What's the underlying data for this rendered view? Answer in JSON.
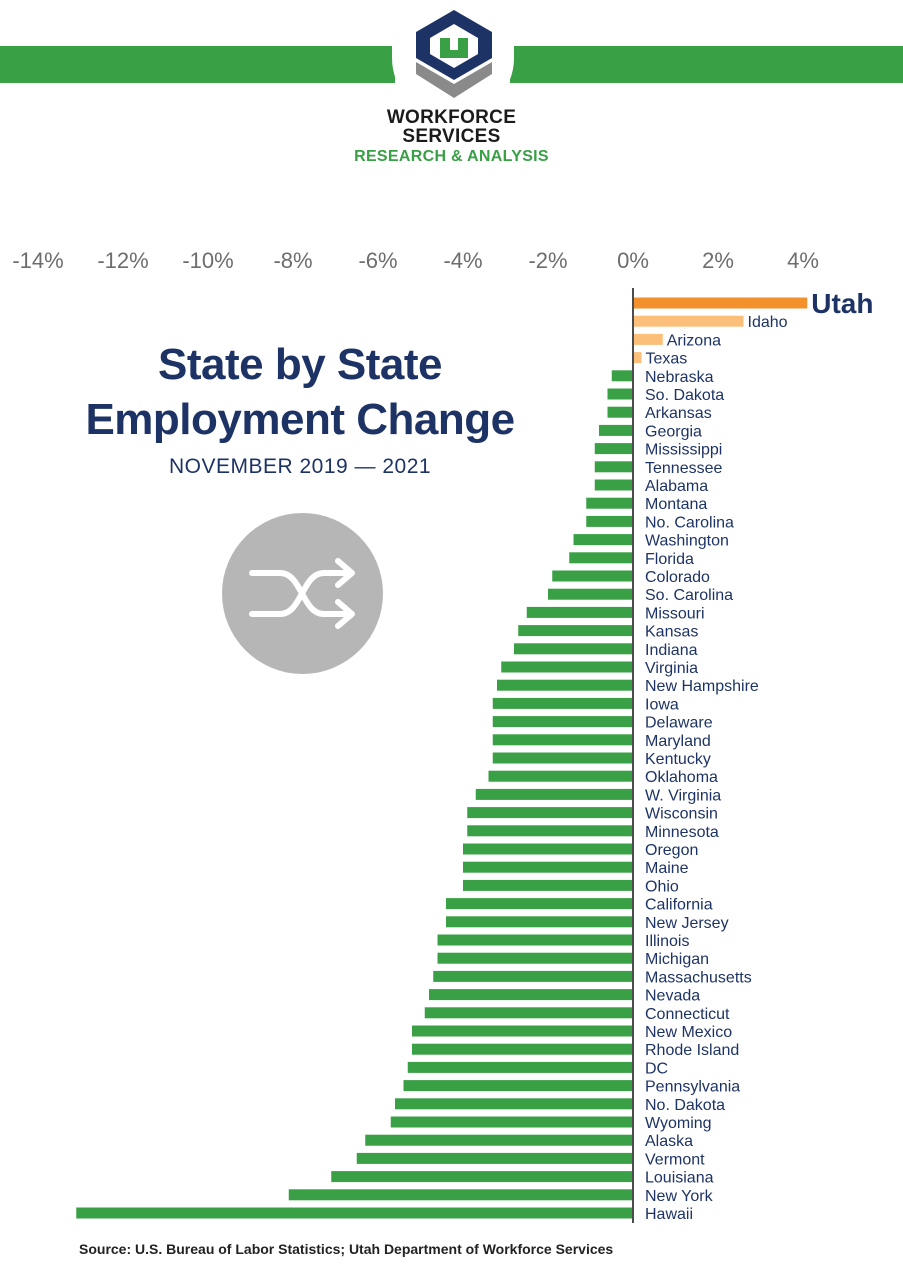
{
  "header": {
    "org_line1": "WORKFORCE",
    "org_line2": "SERVICES",
    "org_line3": "RESEARCH & ANALYSIS",
    "logo_icon": "workforce-services-logo-icon",
    "band_color": "#39a045"
  },
  "chart_data": {
    "type": "bar",
    "orientation": "horizontal",
    "title_line1": "State by State",
    "title_line2": "Employment Change",
    "subtitle": "NOVEMBER 2019 — 2021",
    "decor_icon": "shuffle-icon",
    "x_ticks": [
      "-14%",
      "-12%",
      "-10%",
      "-8%",
      "-6%",
      "-4%",
      "-2%",
      "0%",
      "2%",
      "4%"
    ],
    "xlim": [
      -14.5,
      4.5
    ],
    "grid": false,
    "colors": {
      "highlight": "#f3922c",
      "positive": "#fbbf7a",
      "negative": "#39a045",
      "label": "#1e3365"
    },
    "categories": [
      "Utah",
      "Idaho",
      "Arizona",
      "Texas",
      "Nebraska",
      "So. Dakota",
      "Arkansas",
      "Georgia",
      "Mississippi",
      "Tennessee",
      "Alabama",
      "Montana",
      "No. Carolina",
      "Washington",
      "Florida",
      "Colorado",
      "So. Carolina",
      "Missouri",
      "Kansas",
      "Indiana",
      "Virginia",
      "New Hampshire",
      "Iowa",
      "Delaware",
      "Maryland",
      "Kentucky",
      "Oklahoma",
      "W. Virginia",
      "Wisconsin",
      "Minnesota",
      "Oregon",
      "Maine",
      "Ohio",
      "California",
      "New Jersey",
      "Illinois",
      "Michigan",
      "Massachusetts",
      "Nevada",
      "Connecticut",
      "New Mexico",
      "Rhode Island",
      "DC",
      "Pennsylvania",
      "No. Dakota",
      "Wyoming",
      "Alaska",
      "Vermont",
      "Louisiana",
      "New York",
      "Hawaii"
    ],
    "values": [
      4.1,
      2.6,
      0.7,
      0.2,
      -0.5,
      -0.6,
      -0.6,
      -0.8,
      -0.9,
      -0.9,
      -0.9,
      -1.1,
      -1.1,
      -1.4,
      -1.5,
      -1.9,
      -2.0,
      -2.5,
      -2.7,
      -2.8,
      -3.1,
      -3.2,
      -3.3,
      -3.3,
      -3.3,
      -3.3,
      -3.4,
      -3.7,
      -3.9,
      -3.9,
      -4.0,
      -4.0,
      -4.0,
      -4.4,
      -4.4,
      -4.6,
      -4.6,
      -4.7,
      -4.8,
      -4.9,
      -5.2,
      -5.2,
      -5.3,
      -5.4,
      -5.6,
      -5.7,
      -6.3,
      -6.5,
      -7.1,
      -8.1,
      -13.1
    ]
  },
  "footer": {
    "source": "Source: U.S. Bureau of Labor Statistics; Utah Department of Workforce Services"
  }
}
